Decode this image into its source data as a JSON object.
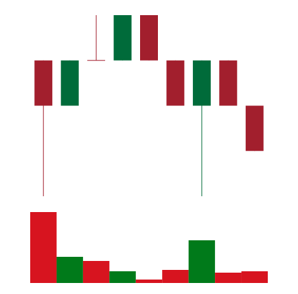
{
  "chart_data": {
    "type": "candlestick",
    "open": [
      4,
      3,
      4,
      4,
      5,
      4,
      3,
      4,
      3
    ],
    "high": [
      4,
      4,
      5,
      5,
      5,
      4,
      4,
      4,
      3
    ],
    "low": [
      1,
      3,
      4,
      4,
      4,
      3,
      1,
      3,
      2
    ],
    "close": [
      3,
      4,
      4,
      5,
      4,
      3,
      4,
      3,
      2
    ],
    "volume": [
      103,
      38,
      32,
      17,
      5,
      19,
      62,
      15,
      17
    ],
    "up_color": "#006b3a",
    "down_color": "#a21f2d",
    "volume_up_color": "#007a1a",
    "volume_down_color": "#d7141f",
    "ylim": [
      1,
      5
    ],
    "volume_ylim": [
      0,
      103
    ]
  }
}
